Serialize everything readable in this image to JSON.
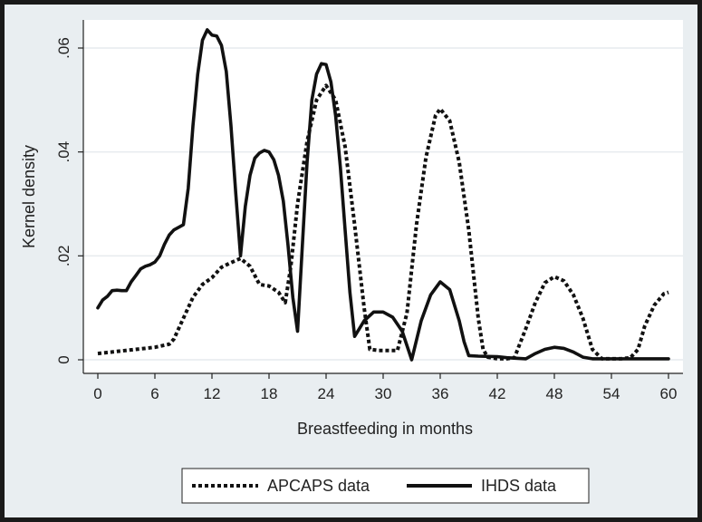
{
  "chart_data": {
    "type": "line",
    "title": "",
    "xlabel": "Breastfeeding in months",
    "ylabel": "Kernel density",
    "xlim": [
      0,
      60
    ],
    "ylim": [
      0,
      0.065
    ],
    "x_ticks": [
      0,
      6,
      12,
      18,
      24,
      30,
      36,
      42,
      48,
      54,
      60
    ],
    "x_tick_labels": [
      "0",
      "6",
      "12",
      "18",
      "24",
      "30",
      "36",
      "42",
      "48",
      "54",
      "60"
    ],
    "y_ticks": [
      0,
      0.02,
      0.04,
      0.06
    ],
    "y_tick_labels": [
      "0",
      ".02",
      ".04",
      ".06"
    ],
    "grid": "horizontal",
    "legend_position": "bottom",
    "series": [
      {
        "name": "APCAPS data",
        "style": "dotted",
        "color": "#111111",
        "x": [
          0,
          2,
          4,
          6,
          7.5,
          8,
          9,
          10,
          11,
          12,
          13,
          14,
          15,
          16,
          17,
          18,
          19,
          19.7,
          20.3,
          21,
          22,
          23,
          24,
          25,
          26,
          27,
          28,
          28.6,
          29.5,
          30.5,
          31.5,
          32.5,
          33.5,
          34.5,
          35.5,
          36,
          37,
          38,
          39,
          40,
          40.5,
          41,
          42,
          43,
          43.8,
          45,
          46,
          47,
          48,
          49,
          50,
          51,
          52,
          53,
          54,
          55,
          56,
          56.8,
          57.5,
          58.5,
          59.5,
          60
        ],
        "y": [
          0.0012,
          0.0016,
          0.002,
          0.0024,
          0.003,
          0.004,
          0.008,
          0.012,
          0.0145,
          0.0158,
          0.0178,
          0.0187,
          0.0195,
          0.018,
          0.0145,
          0.0142,
          0.013,
          0.011,
          0.018,
          0.03,
          0.042,
          0.05,
          0.0528,
          0.05,
          0.041,
          0.026,
          0.01,
          0.002,
          0.0018,
          0.0018,
          0.0018,
          0.009,
          0.026,
          0.039,
          0.047,
          0.0483,
          0.046,
          0.038,
          0.025,
          0.008,
          0.002,
          0.0005,
          0.0002,
          0.0002,
          0.0004,
          0.006,
          0.011,
          0.0148,
          0.016,
          0.0152,
          0.0125,
          0.008,
          0.002,
          0.0002,
          0.0002,
          0.0002,
          0.0004,
          0.002,
          0.0065,
          0.0105,
          0.0127,
          0.013
        ]
      },
      {
        "name": "IHDS data",
        "style": "solid",
        "color": "#111111",
        "x": [
          0,
          0.5,
          1,
          1.5,
          2,
          2.5,
          3,
          3.5,
          4,
          4.5,
          5,
          5.5,
          6,
          6.5,
          7,
          7.5,
          8,
          8.5,
          9,
          9.5,
          10,
          10.5,
          11,
          11.5,
          12,
          12.5,
          13,
          13.5,
          14,
          14.5,
          15,
          15.5,
          16,
          16.5,
          17,
          17.5,
          18,
          18.5,
          19,
          19.5,
          20,
          20.5,
          21,
          21.5,
          22,
          22.5,
          23,
          23.5,
          24,
          24.5,
          25,
          25.5,
          26,
          26.5,
          27,
          27.5,
          28,
          29,
          30,
          31,
          32,
          33,
          34,
          35,
          36,
          37,
          38,
          38.5,
          39,
          40,
          42,
          43,
          44,
          45,
          46,
          47,
          48,
          49,
          50,
          51,
          52,
          54,
          56,
          58,
          60
        ],
        "y": [
          0.01,
          0.0115,
          0.0122,
          0.0133,
          0.0134,
          0.0133,
          0.0133,
          0.015,
          0.0162,
          0.0175,
          0.018,
          0.0183,
          0.0188,
          0.02,
          0.0222,
          0.024,
          0.025,
          0.0255,
          0.026,
          0.033,
          0.045,
          0.055,
          0.0615,
          0.0635,
          0.0625,
          0.0623,
          0.0605,
          0.0555,
          0.045,
          0.032,
          0.02,
          0.0295,
          0.0355,
          0.0388,
          0.0398,
          0.0403,
          0.04,
          0.0385,
          0.0355,
          0.0305,
          0.022,
          0.012,
          0.0055,
          0.022,
          0.038,
          0.05,
          0.055,
          0.057,
          0.0568,
          0.0535,
          0.047,
          0.037,
          0.025,
          0.013,
          0.0045,
          0.006,
          0.0075,
          0.0092,
          0.0092,
          0.0082,
          0.0055,
          0.0,
          0.0075,
          0.0125,
          0.015,
          0.0135,
          0.0075,
          0.0035,
          0.0008,
          0.0007,
          0.0006,
          0.0004,
          0.0003,
          0.0002,
          0.0012,
          0.002,
          0.0024,
          0.0022,
          0.0015,
          0.0005,
          0.0002,
          0.0002,
          0.0002,
          0.0002,
          0.0002
        ]
      }
    ]
  }
}
